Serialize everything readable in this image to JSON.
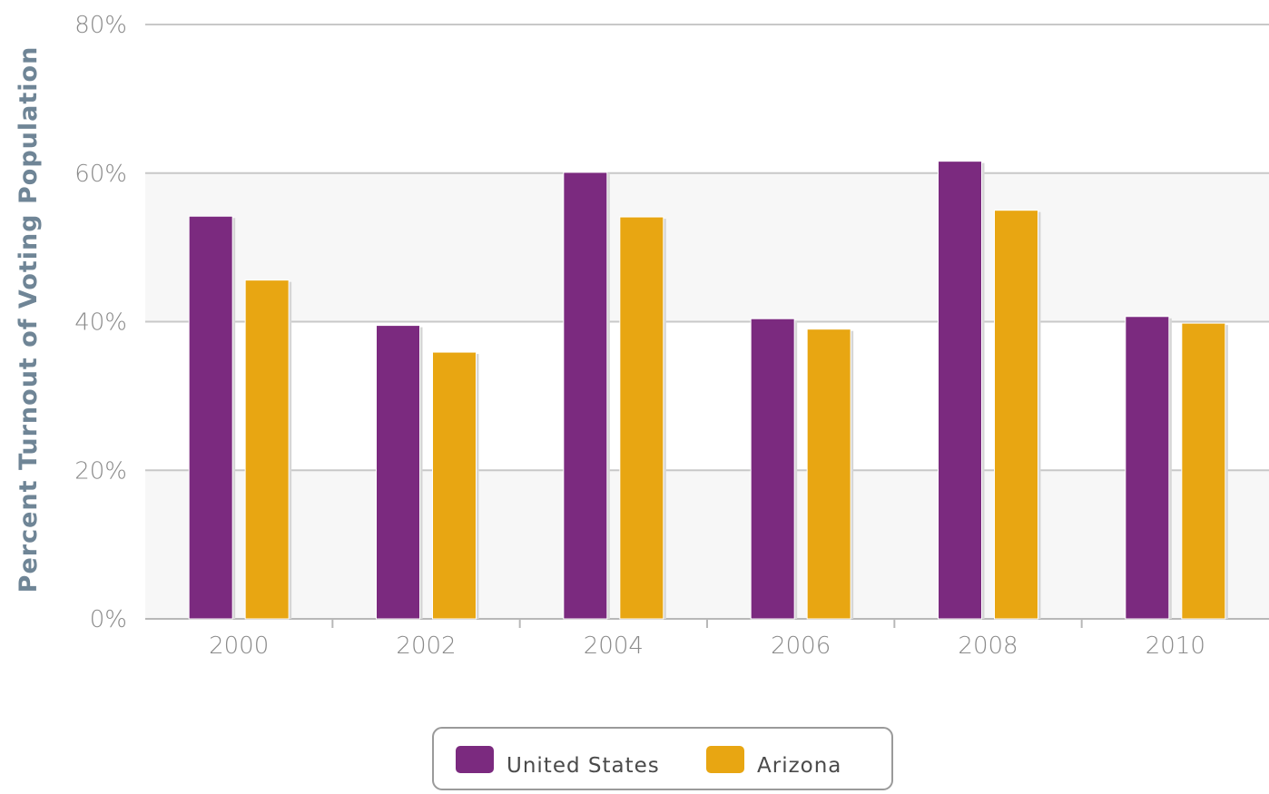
{
  "chart_data": {
    "type": "bar",
    "ylabel": "Percent Turnout of Voting Population",
    "xlabel": "",
    "ylim": [
      0,
      80
    ],
    "yticks": [
      "0%",
      "20%",
      "40%",
      "60%",
      "80%"
    ],
    "ytick_values": [
      0,
      20,
      40,
      60,
      80
    ],
    "categories": [
      "2000",
      "2002",
      "2004",
      "2006",
      "2008",
      "2010"
    ],
    "series": [
      {
        "name": "United States",
        "color": "#7b2a7f",
        "values": [
          54.2,
          39.5,
          60.1,
          40.4,
          61.6,
          40.7
        ]
      },
      {
        "name": "Arizona",
        "color": "#e8a612",
        "values": [
          45.6,
          35.9,
          54.1,
          39.0,
          55.0,
          39.8
        ]
      }
    ],
    "grid": true,
    "legend": "bottom-center"
  }
}
